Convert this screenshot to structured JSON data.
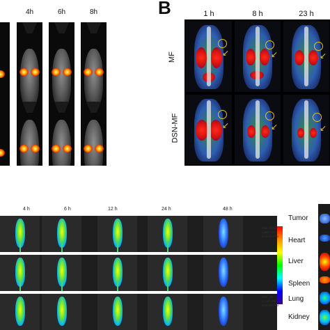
{
  "panel_a": {
    "headers": [
      "4h",
      "6h",
      "8h"
    ]
  },
  "panel_b": {
    "label": "B",
    "headers": [
      "1 h",
      "8 h",
      "23 h"
    ],
    "rows": [
      "MF",
      "DSN-MF"
    ]
  },
  "panel_c": {
    "headers": [
      "4 h",
      "6 h",
      "12 h",
      "24 h",
      "48 h"
    ],
    "colorbar_top": [
      "Max: 5130",
      "2.88E+08",
      "p/sec/cm²/sr"
    ],
    "colorbar_bottom": [
      "Max: 20",
      "1.14E+06",
      "p/sec/cm²/sr"
    ],
    "organs": [
      "Tumor",
      "Heart",
      "Liver",
      "Spleen",
      "Lung",
      "Kidney"
    ]
  },
  "colors": {
    "glow": "#ffb000",
    "arrow": "#e8c800",
    "frame": "#000000"
  }
}
